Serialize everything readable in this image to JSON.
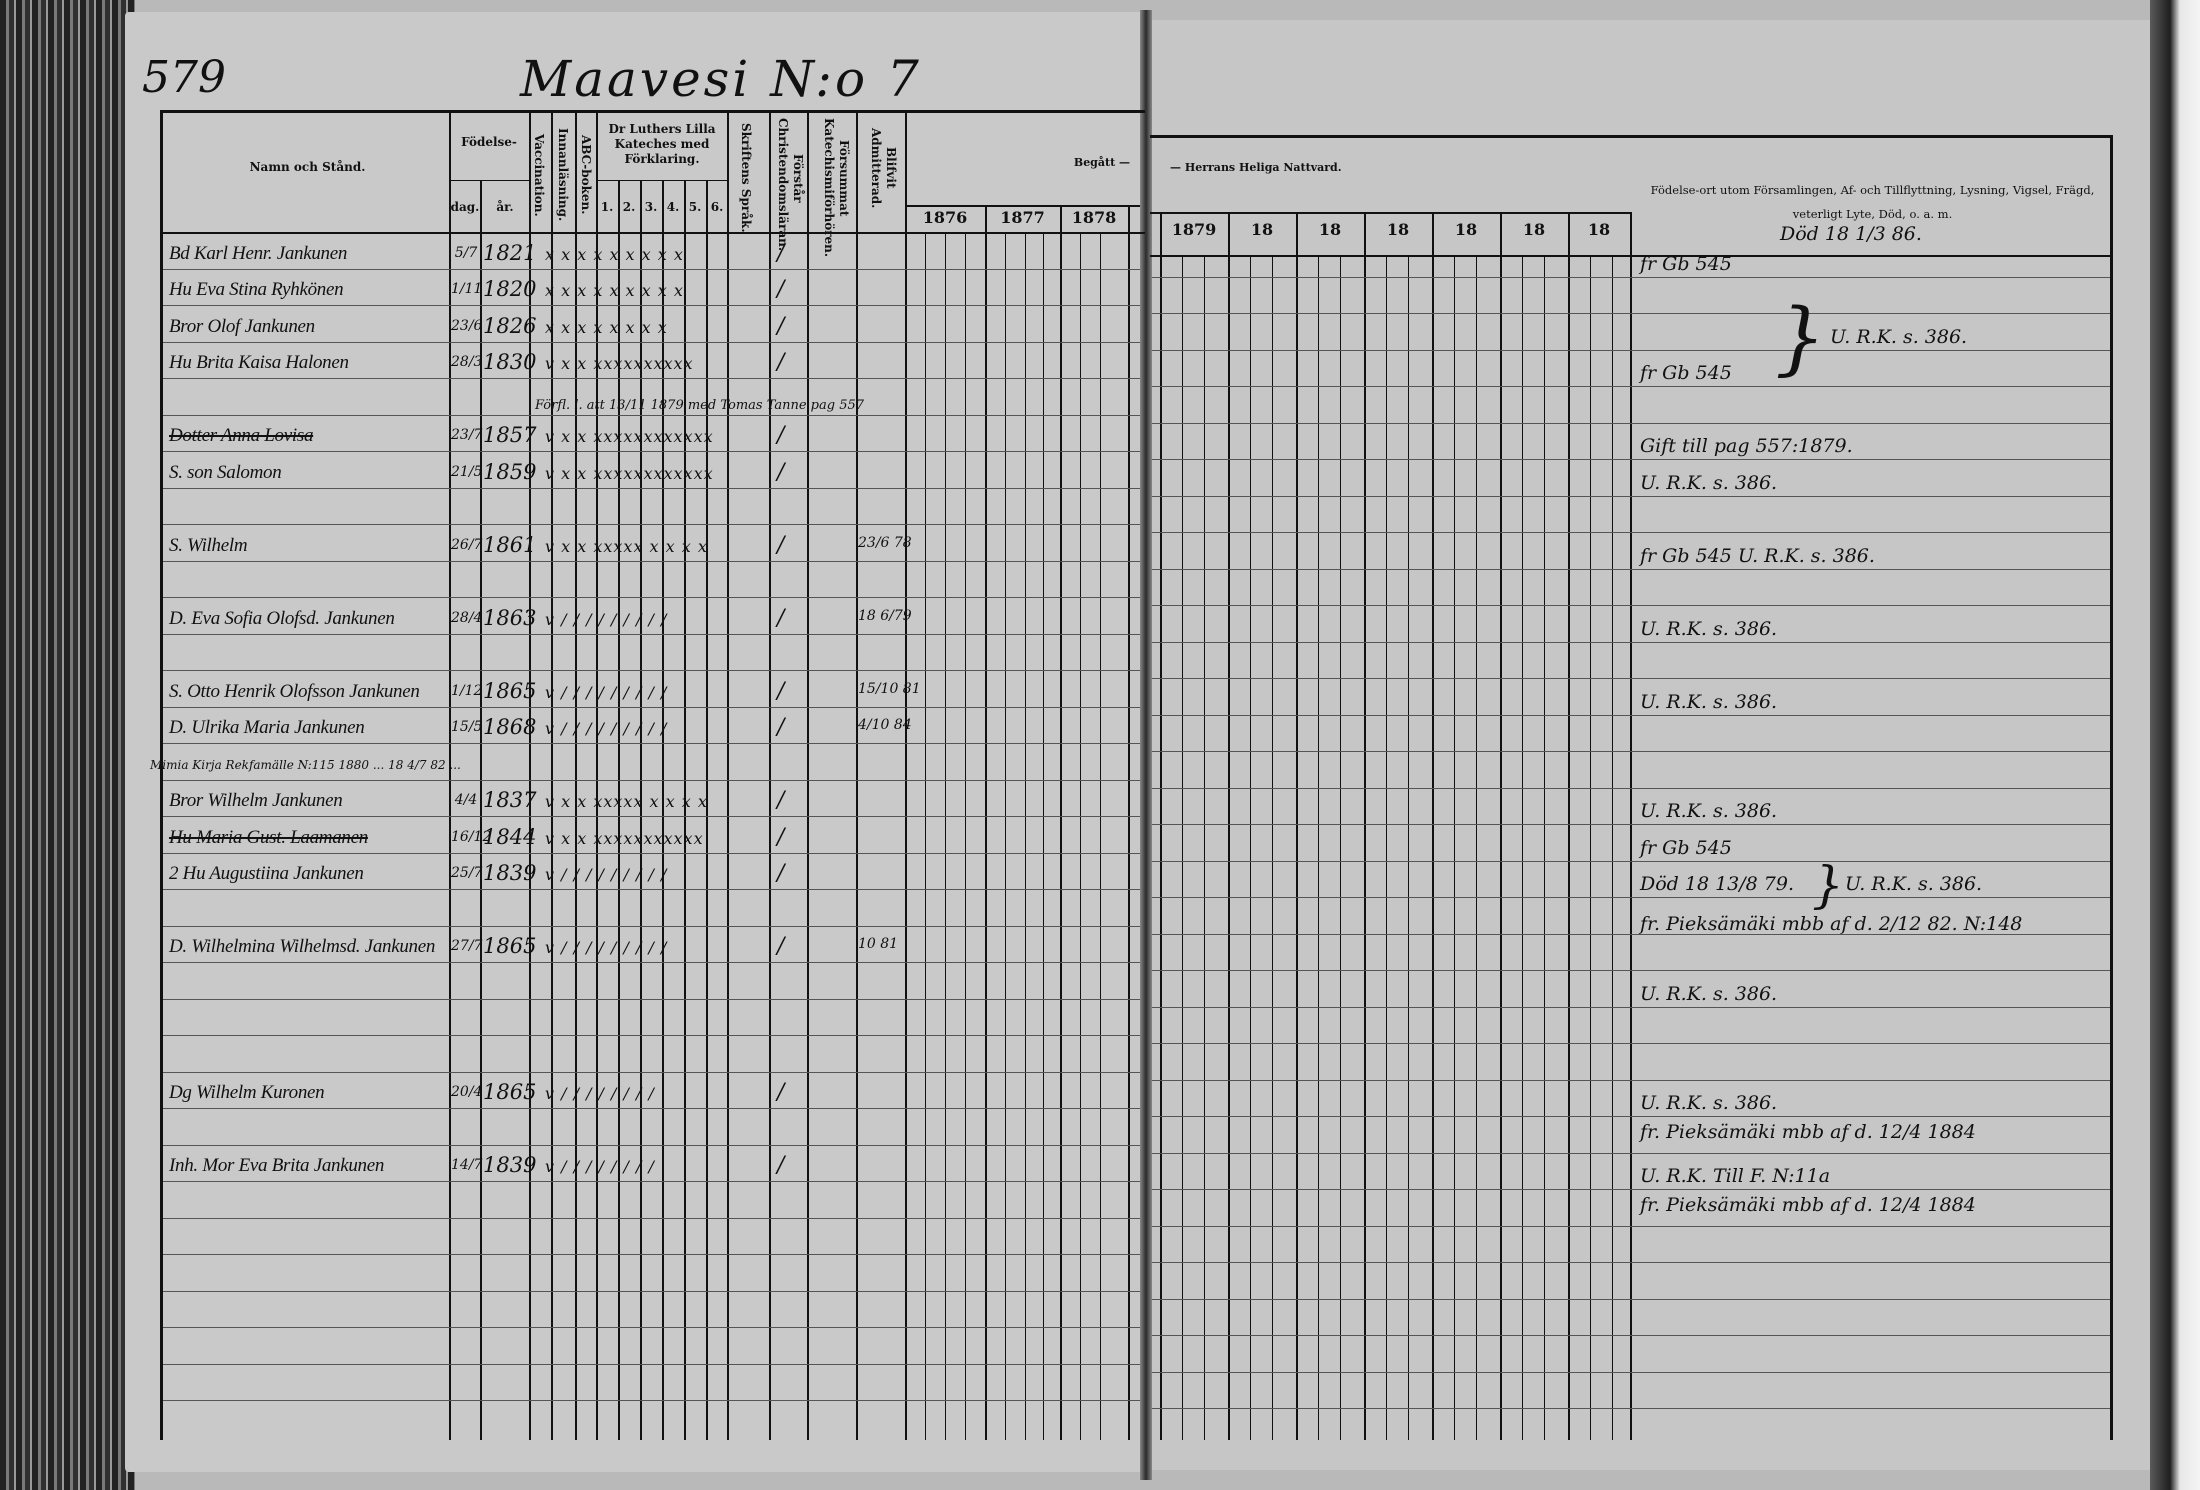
{
  "page_number": "579",
  "title": "Maavesi N:o 7",
  "headers": {
    "name": "Namn och Stånd.",
    "birth": "Födelse-",
    "birth_day": "dag.",
    "birth_year": "år.",
    "vaccination": "Vaccination.",
    "reading": "Innanläsning.",
    "abc": "ABC-boken.",
    "catechism": "Dr Luthers Lilla Kateches med Förklaring.",
    "catechism_parts": [
      "1.",
      "2.",
      "3.",
      "4.",
      "5.",
      "6."
    ],
    "scripture": "Skriftens Språk.",
    "christian": "Förstår Christendomsläran.",
    "missed": "Försummat Katechismiförhören.",
    "admitted": "Blifvit Admitterad.",
    "communion_left": "Begått —",
    "communion_right": "— Herrans Heliga Nattvard.",
    "years_left": [
      "1876",
      "1877",
      "1878"
    ],
    "years_right": [
      "1879",
      "18",
      "18",
      "18",
      "18",
      "18",
      "18"
    ],
    "remarks": "Födelse-ort utom Församlingen, Af- och Tillflyttning, Lysning, Vigsel, Frägd, veterligt Lyte, Död, o. a. m."
  },
  "entries": [
    {
      "name": "Bd Karl Henr. Jankunen",
      "day": "5/7",
      "year": "1821",
      "marks": "x x x x x x x x x",
      "struck": false
    },
    {
      "name": "Hu Eva Stina Ryhkönen",
      "day": "1/11",
      "year": "1820",
      "marks": "x x x x x x x x x",
      "struck": false
    },
    {
      "name": "Bror Olof Jankunen",
      "day": "23/6",
      "year": "1826",
      "marks": "x x x x x x x x",
      "struck": false
    },
    {
      "name": "Hu Brita Kaisa Halonen",
      "day": "28/3",
      "year": "1830",
      "marks": "v x x xxxxxxxxxx",
      "struck": false
    },
    {
      "name": "Dotter Anna Lovisa",
      "day": "23/7",
      "year": "1857",
      "marks": "v x x xxxxxxxxxxxx",
      "struck": true
    },
    {
      "name": "S. son Salomon",
      "day": "21/5",
      "year": "1859",
      "marks": "v x x xxxxxxxxxxxx",
      "struck": false
    },
    {
      "name": "S. Wilhelm",
      "day": "26/7",
      "year": "1861",
      "marks": "v x x xxxxx x x x x",
      "struck": false
    },
    {
      "name": "D. Eva Sofia Olofsd. Jankunen",
      "day": "28/4",
      "year": "1863",
      "marks": "v / / / / / / / / /",
      "struck": false
    },
    {
      "name": "S. Otto Henrik Olofsson Jankunen",
      "day": "1/12",
      "year": "1865",
      "marks": "v / / / / / / / / /",
      "struck": false
    },
    {
      "name": "D. Ulrika Maria Jankunen",
      "day": "15/5",
      "year": "1868",
      "marks": "v / / / / / / / / /",
      "struck": false
    },
    {
      "name": "Bror Wilhelm Jankunen",
      "day": "4/4",
      "year": "1837",
      "marks": "v x x xxxxx x x x x",
      "struck": false
    },
    {
      "name": "Hu Maria Gust. Laamanen",
      "day": "16/12",
      "year": "1844",
      "marks": "v x x xxxxxxxxxxx",
      "struck": true
    },
    {
      "name": "2 Hu Augustiina Jankunen",
      "day": "25/7",
      "year": "1839",
      "marks": "v / / / / / / / / /",
      "struck": false
    },
    {
      "name": "D. Wilhelmina Wilhelmsd. Jankunen",
      "day": "27/7",
      "year": "1865",
      "marks": "v / / / / / / / / /",
      "struck": false
    },
    {
      "name": "Dg Wilhelm Kuronen",
      "day": "20/4",
      "year": "1865",
      "marks": "v / / / / / / / /",
      "struck": false
    },
    {
      "name": "Inh. Mor Eva Brita Jankunen",
      "day": "14/7",
      "year": "1839",
      "marks": "v / / / / / / / /",
      "struck": false
    }
  ],
  "margin_notes": [
    "Förfl. l. att 13/11 1879 med Tomas Tanne pag 557",
    "Mimia Kirja Rekfamälle N:115 1880 ... 18 4/7 82 ..."
  ],
  "admission_notes": [
    "23/6 78",
    "18 6/79",
    "15/10 81",
    "4/10 84",
    "10 81"
  ],
  "remarks": [
    "Död 18 1/3 86.",
    "fr Gb 545",
    "U. R.K. s. 386.",
    "fr Gb 545",
    "Gift till pag 557:1879.",
    "U. R.K. s. 386.",
    "fr Gb 545 U. R.K. s. 386.",
    "U. R.K. s. 386.",
    "U. R.K. s. 386.",
    "U. R.K. s. 386.",
    "fr Gb 545",
    "Död 18 13/8 79.",
    "U. R.K. s. 386.",
    "fr. Pieksämäki mbb af d. 2/12 82. N:148",
    "U. R.K. s. 386.",
    "U. R.K. s. 386.",
    "fr. Pieksämäki mbb af d. 12/4 1884",
    "U. R.K. Till F. N:11a",
    "fr. Pieksämäki mbb af d. 12/4 1884"
  ]
}
